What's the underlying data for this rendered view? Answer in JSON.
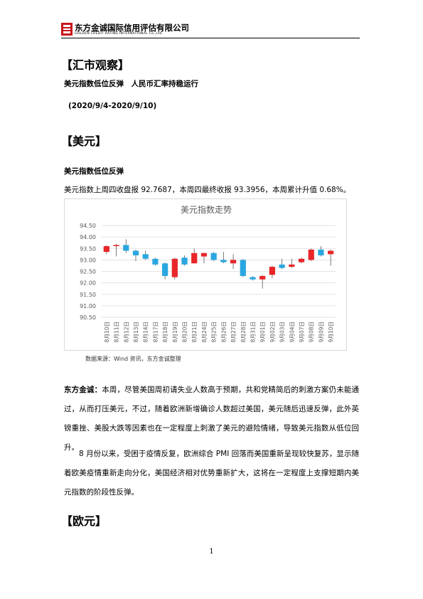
{
  "header": {
    "company": "东方金诚国际信用评估有限公司",
    "company_en": "GOLDEN CREDIT RATING INTERNATIONAL Co.,Ltd."
  },
  "section_title": "【汇市观察】",
  "headline": "美元指数低位反弹　人民币汇率持稳运行",
  "period": "(2020/9/4-2020/9/10)",
  "usd": {
    "heading": "【美元】",
    "subheading": "美元指数低位反弹",
    "intro": "美元指数上周四收盘报 92.7687，本周四最终收报 93.3956，本周累计升值 0.68%。",
    "source": "数据来源：Wind 资讯，东方金诚整理",
    "comment_lead": "东方金诚：",
    "comment": "本周，尽管美国周初请失业人数高于预期，共和党精简后的刺激方案仍未能通过，从而打压美元，不过，随着欧洲新增确诊人数超过美国，美元随后迅速反弹，此外英镑重挫、美股大跌等因素也在一定程度上刺激了美元的避险情绪，导致美元指数从低位回升。",
    "paragraph": "8 月份以来，受困于疫情反复，欧洲综合 PMI 回落而美国重新呈现较快复苏，显示随着欧美疫情重新走向分化，美国经济相对优势重新扩大，这将在一定程度上支撑短期内美元指数的阶段性反弹。"
  },
  "eur": {
    "heading": "【欧元】"
  },
  "page_number": "1",
  "chart_data": {
    "type": "candlestick",
    "title": "美元指数走势",
    "categories": [
      "8月10日",
      "8月11日",
      "8月12日",
      "8月13日",
      "8月14日",
      "8月17日",
      "8月18日",
      "8月19日",
      "8月20日",
      "8月21日",
      "8月24日",
      "8月25日",
      "8月26日",
      "8月27日",
      "8月28日",
      "8月31日",
      "9月01日",
      "9月02日",
      "9月03日",
      "9月04日",
      "9月07日",
      "9月08日",
      "9月09日",
      "9月10日"
    ],
    "open": [
      93.35,
      93.6,
      93.65,
      93.4,
      93.25,
      93.05,
      92.85,
      92.25,
      93.1,
      92.85,
      93.15,
      93.3,
      93.0,
      92.85,
      93.0,
      92.25,
      92.15,
      92.35,
      92.8,
      92.7,
      92.9,
      93.0,
      93.45,
      93.25
    ],
    "high": [
      93.65,
      93.7,
      93.9,
      93.45,
      93.4,
      93.1,
      92.9,
      93.1,
      93.2,
      93.5,
      93.3,
      93.35,
      93.35,
      93.25,
      93.05,
      92.3,
      92.35,
      92.75,
      93.05,
      93.05,
      93.1,
      93.5,
      93.6,
      93.45
    ],
    "low": [
      93.25,
      93.15,
      93.3,
      92.95,
      93.0,
      92.75,
      92.15,
      92.15,
      92.75,
      92.85,
      92.85,
      92.95,
      92.85,
      92.6,
      92.25,
      92.1,
      91.75,
      92.2,
      92.6,
      92.65,
      92.85,
      92.95,
      93.15,
      92.75
    ],
    "close": [
      93.6,
      93.65,
      93.4,
      93.2,
      93.05,
      92.8,
      92.3,
      93.05,
      92.8,
      93.3,
      93.3,
      93.0,
      92.9,
      93.0,
      92.3,
      92.15,
      92.3,
      92.7,
      92.65,
      92.8,
      93.05,
      93.45,
      93.2,
      93.4
    ],
    "up_color": "#e8262a",
    "down_color": "#2aa7e0",
    "ylim": [
      90.5,
      94.5
    ],
    "yticks": [
      {
        "value": 90.5,
        "label": "90.50"
      },
      {
        "value": 91,
        "label": "91.00"
      },
      {
        "value": 91.5,
        "label": "91.50"
      },
      {
        "value": 92,
        "label": "92.00"
      },
      {
        "value": 92.5,
        "label": "92.50"
      },
      {
        "value": 93,
        "label": "93.00"
      },
      {
        "value": 93.5,
        "label": "93.50"
      },
      {
        "value": 94,
        "label": "94.00"
      },
      {
        "value": 94.5,
        "label": "94.50"
      }
    ],
    "grid": true
  }
}
